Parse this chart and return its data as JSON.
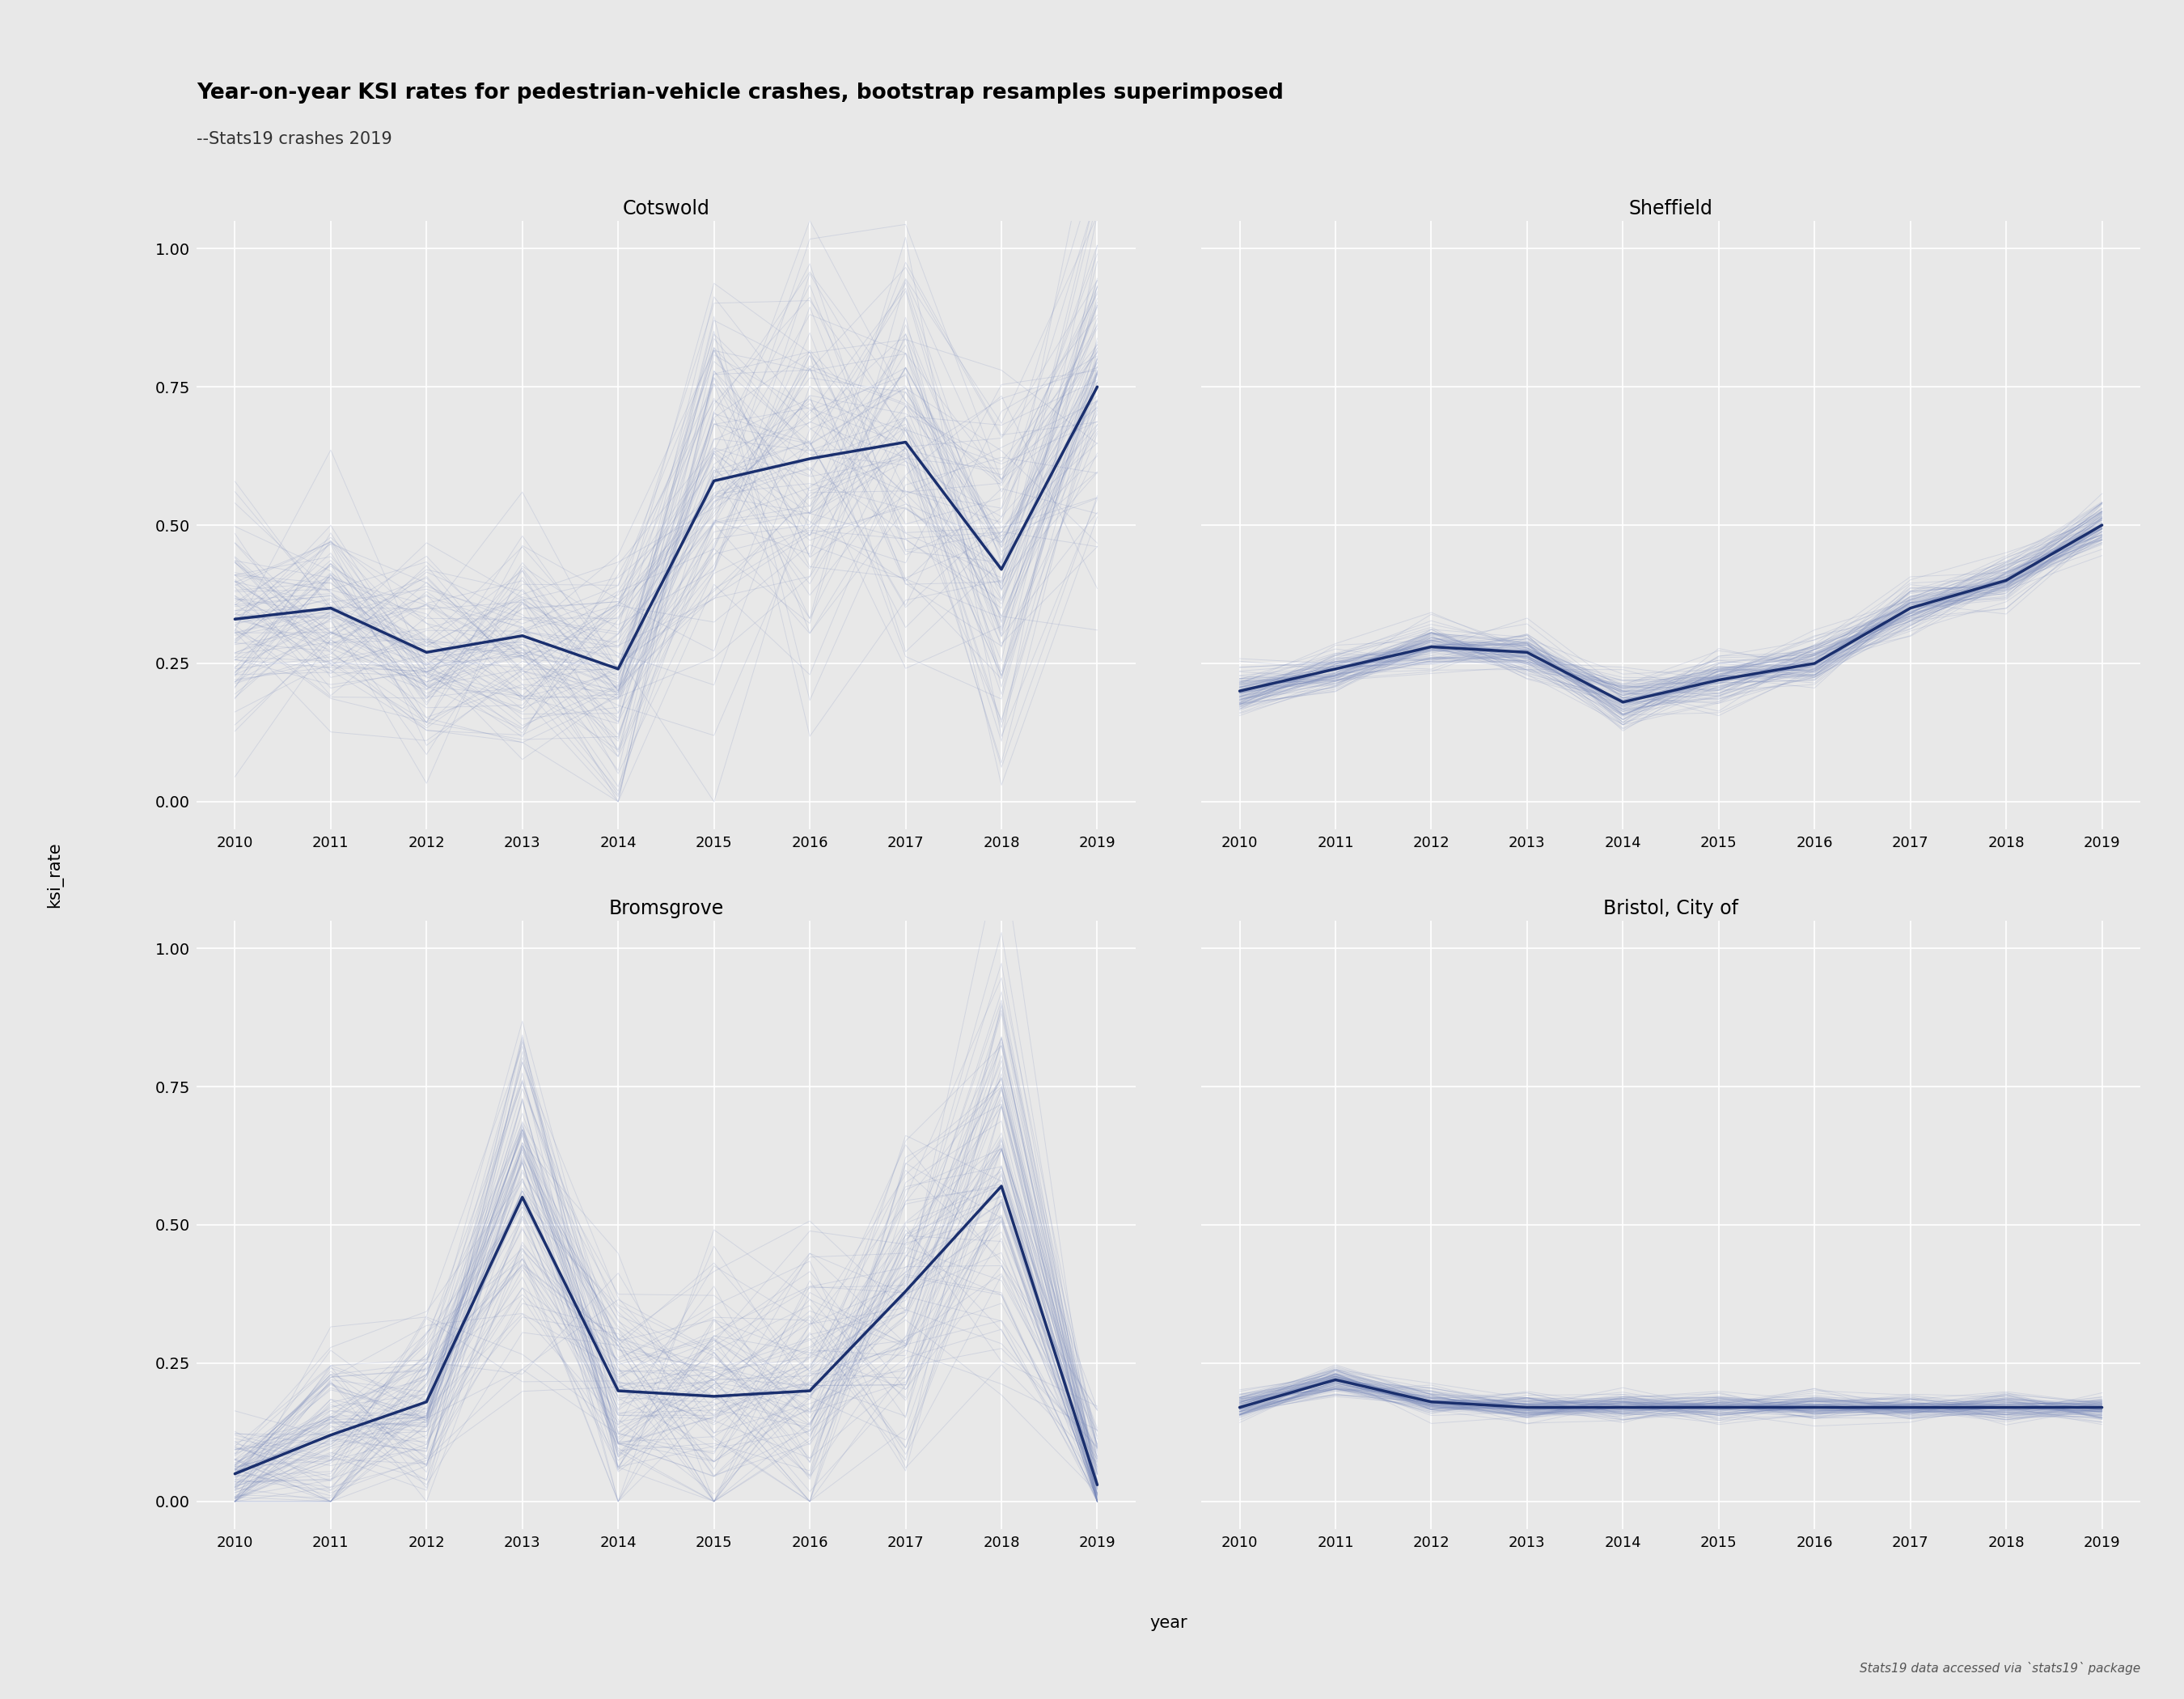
{
  "title": "Year-on-year KSI rates for pedestrian-vehicle crashes, bootstrap resamples superimposed",
  "subtitle": "--Stats19 crashes 2019",
  "xlabel": "year",
  "ylabel": "ksi_rate",
  "footnote": "Stats19 data accessed via `stats19` package",
  "background_color": "#e8e8e8",
  "plot_bg_color": "#e8e8e8",
  "grid_color": "#d0d0d0",
  "main_line_color": "#1a2f6e",
  "bootstrap_color": "#7788bb",
  "years": [
    2010,
    2011,
    2012,
    2013,
    2014,
    2015,
    2016,
    2017,
    2018,
    2019
  ],
  "panels": [
    {
      "title": "Cotswold",
      "main": [
        0.33,
        0.35,
        0.27,
        0.3,
        0.24,
        0.58,
        0.62,
        0.65,
        0.42,
        0.75
      ],
      "ylim": [
        -0.05,
        1.05
      ],
      "yticks": [
        0.0,
        0.25,
        0.5,
        0.75,
        1.0
      ],
      "bootstrap_seeds": [
        10,
        11,
        12
      ],
      "bootstrap_n": 100
    },
    {
      "title": "Sheffield",
      "main": [
        0.2,
        0.24,
        0.28,
        0.27,
        0.18,
        0.22,
        0.25,
        0.35,
        0.4,
        0.5
      ],
      "ylim": [
        -0.05,
        1.05
      ],
      "yticks": [
        0.0,
        0.25,
        0.5,
        0.75,
        1.0
      ],
      "bootstrap_seeds": [
        20,
        21,
        22
      ],
      "bootstrap_n": 100
    },
    {
      "title": "Bromsgrove",
      "main": [
        0.05,
        0.12,
        0.18,
        0.55,
        0.2,
        0.19,
        0.2,
        0.38,
        0.57,
        0.03
      ],
      "ylim": [
        -0.05,
        1.05
      ],
      "yticks": [
        0.0,
        0.25,
        0.5,
        0.75,
        1.0
      ],
      "bootstrap_seeds": [
        30,
        31,
        32
      ],
      "bootstrap_n": 100
    },
    {
      "title": "Bristol, City of",
      "main": [
        0.17,
        0.22,
        0.18,
        0.17,
        0.17,
        0.17,
        0.17,
        0.17,
        0.17,
        0.17
      ],
      "ylim": [
        -0.05,
        1.05
      ],
      "yticks": [
        0.0,
        0.25,
        0.5,
        0.75,
        1.0
      ],
      "bootstrap_seeds": [
        40,
        41,
        42
      ],
      "bootstrap_n": 100
    }
  ]
}
